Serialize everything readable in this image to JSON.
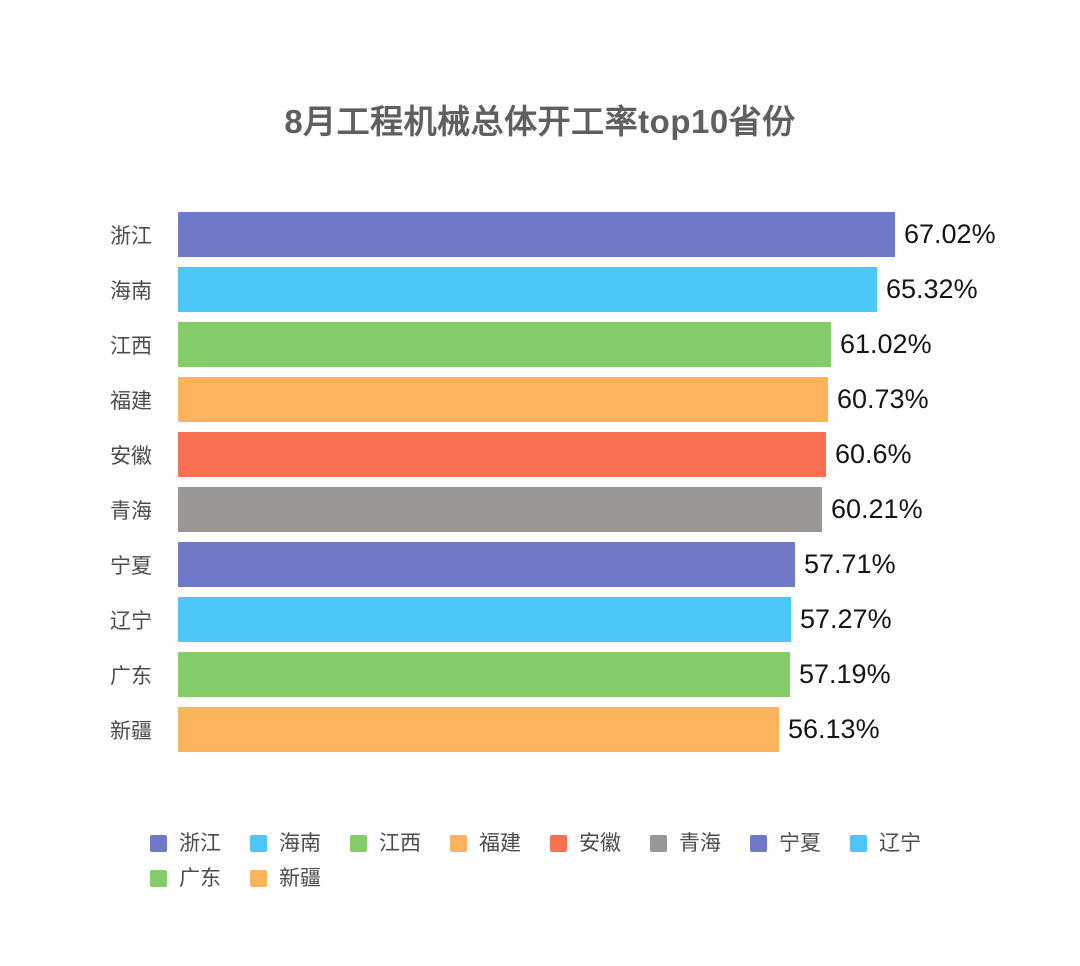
{
  "title": "8月工程机械总体开工率top10省份",
  "palette": [
    "#7079C8",
    "#4CC8F8",
    "#84CC69",
    "#FBB45B",
    "#FA7053",
    "#999693"
  ],
  "chart_data": {
    "type": "bar",
    "orientation": "horizontal",
    "title": "8月工程机械总体开工率top10省份",
    "categories": [
      "浙江",
      "海南",
      "江西",
      "福建",
      "安徽",
      "青海",
      "宁夏",
      "辽宁",
      "广东",
      "新疆"
    ],
    "values": [
      67.02,
      65.32,
      61.02,
      60.73,
      60.6,
      60.21,
      57.71,
      57.27,
      57.19,
      56.13
    ],
    "value_labels": [
      "67.02%",
      "65.32%",
      "61.02%",
      "60.73%",
      "60.6%",
      "60.21%",
      "57.71%",
      "57.27%",
      "57.19%",
      "56.13%"
    ],
    "bar_colors": [
      "#7079C8",
      "#4CC8F8",
      "#84CC69",
      "#FBB45B",
      "#FA7053",
      "#999693",
      "#7079C8",
      "#4CC8F8",
      "#84CC69",
      "#FBB45B"
    ],
    "unit": "%",
    "xlim": [
      0,
      70
    ],
    "grid": false,
    "axis_lines": false,
    "legend_position": "bottom"
  },
  "legend": {
    "items": [
      {
        "label": "浙江",
        "color": "#7079C8"
      },
      {
        "label": "海南",
        "color": "#4CC8F8"
      },
      {
        "label": "江西",
        "color": "#84CC69"
      },
      {
        "label": "福建",
        "color": "#FBB45B"
      },
      {
        "label": "安徽",
        "color": "#FA7053"
      },
      {
        "label": "青海",
        "color": "#999693"
      },
      {
        "label": "宁夏",
        "color": "#7079C8"
      },
      {
        "label": "辽宁",
        "color": "#4CC8F8"
      },
      {
        "label": "广东",
        "color": "#84CC69"
      },
      {
        "label": "新疆",
        "color": "#FBB45B"
      }
    ]
  }
}
